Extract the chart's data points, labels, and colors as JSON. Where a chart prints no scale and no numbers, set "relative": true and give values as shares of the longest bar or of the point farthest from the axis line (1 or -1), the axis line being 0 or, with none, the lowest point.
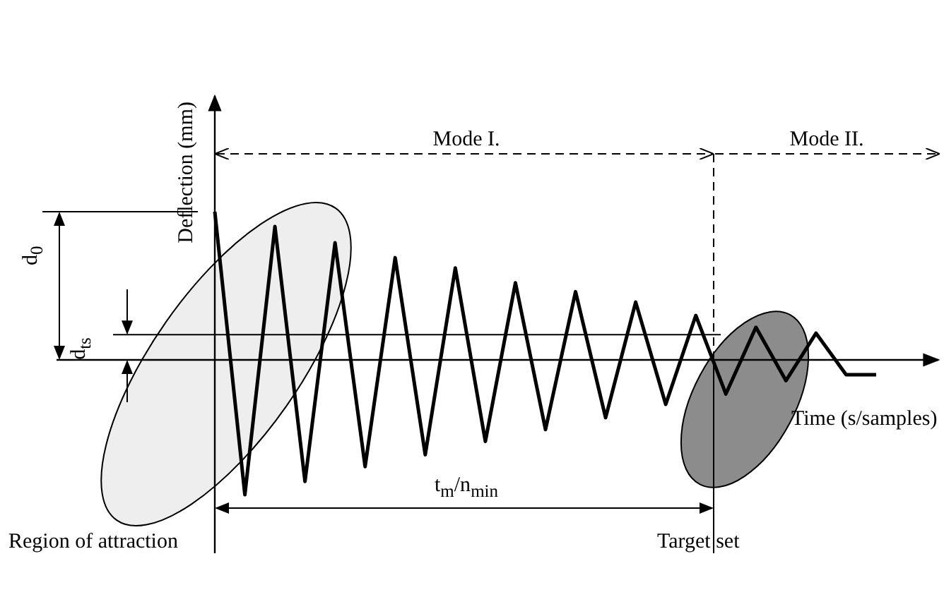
{
  "chart_data": {
    "type": "line",
    "relative": true,
    "xlabel": "Time (s/samples)",
    "ylabel": "Deflection (mm)",
    "categories": [
      null,
      null,
      null,
      null,
      null,
      null,
      null,
      null,
      null,
      null,
      null,
      null,
      null,
      null,
      null,
      null,
      null,
      null,
      null,
      null,
      null,
      null,
      null
    ],
    "series": [
      {
        "color": "#000000",
        "values": [
          1.0,
          -0.91,
          0.9,
          -0.82,
          0.79,
          -0.72,
          0.69,
          -0.64,
          0.62,
          -0.55,
          0.52,
          -0.47,
          0.46,
          -0.39,
          0.39,
          -0.3,
          0.3,
          -0.23,
          0.22,
          -0.14,
          0.18,
          -0.1,
          -0.1
        ]
      }
    ],
    "ref_lines": [
      {
        "axis": "y",
        "value": 0.17,
        "label": "d$_{ts}$"
      }
    ],
    "annotations": [
      "Mode I.",
      "Mode II.",
      "d$_{0}$",
      "t$_{m}$/n$_{min}$",
      "Region of attraction",
      "Target set"
    ],
    "marker": "none"
  }
}
